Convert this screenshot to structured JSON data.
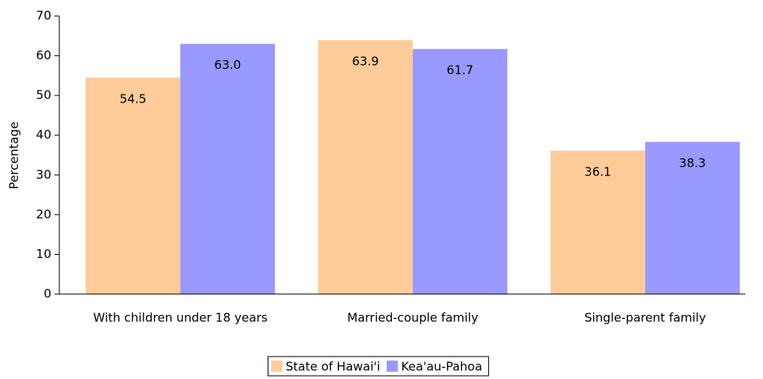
{
  "chart_data": {
    "type": "bar",
    "y_label": "Percentage",
    "categories": [
      "With children under 18 years",
      "Married-couple family",
      "Single-parent family"
    ],
    "series": [
      {
        "name": "State of Hawai'i",
        "color": "#ffcc99",
        "values": [
          54.5,
          63.9,
          36.1
        ],
        "value_labels": [
          "54.5",
          "63.9",
          "36.1"
        ]
      },
      {
        "name": "Kea'au-Pahoa",
        "color": "#9999ff",
        "values": [
          63,
          61.7,
          38.3
        ],
        "value_labels": [
          "63.0",
          "61.7",
          "38.3"
        ]
      }
    ],
    "ylim": [
      0,
      70
    ],
    "yticks": [
      0,
      10,
      20,
      30,
      40,
      50,
      60,
      70
    ],
    "grid": false,
    "legend": "bottom"
  }
}
